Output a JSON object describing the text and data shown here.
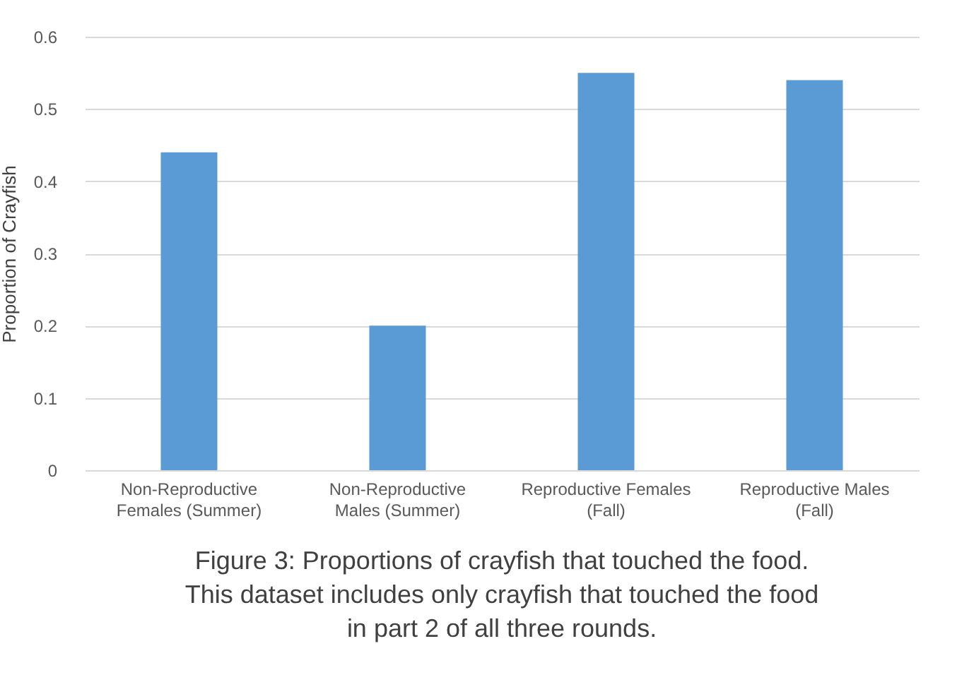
{
  "chart_data": {
    "type": "bar",
    "title": "Figure 3: Proportions of crayfish that touched the food. This dataset includes only crayfish that touched the food in part 2 of all three rounds.",
    "ylabel": "Proportion of Crayfish",
    "categories": [
      "Non-Reproductive Females (Summer)",
      "Non-Reproductive Males (Summer)",
      "Reproductive Females (Fall)",
      "Reproductive Males (Fall)"
    ],
    "values": [
      0.44,
      0.2,
      0.55,
      0.54
    ],
    "color": "#5b9bd5",
    "ylim": [
      0,
      0.6
    ],
    "yticks": [
      0,
      0.1,
      0.2,
      0.3,
      0.4,
      0.5,
      0.6
    ],
    "grid": "y"
  }
}
